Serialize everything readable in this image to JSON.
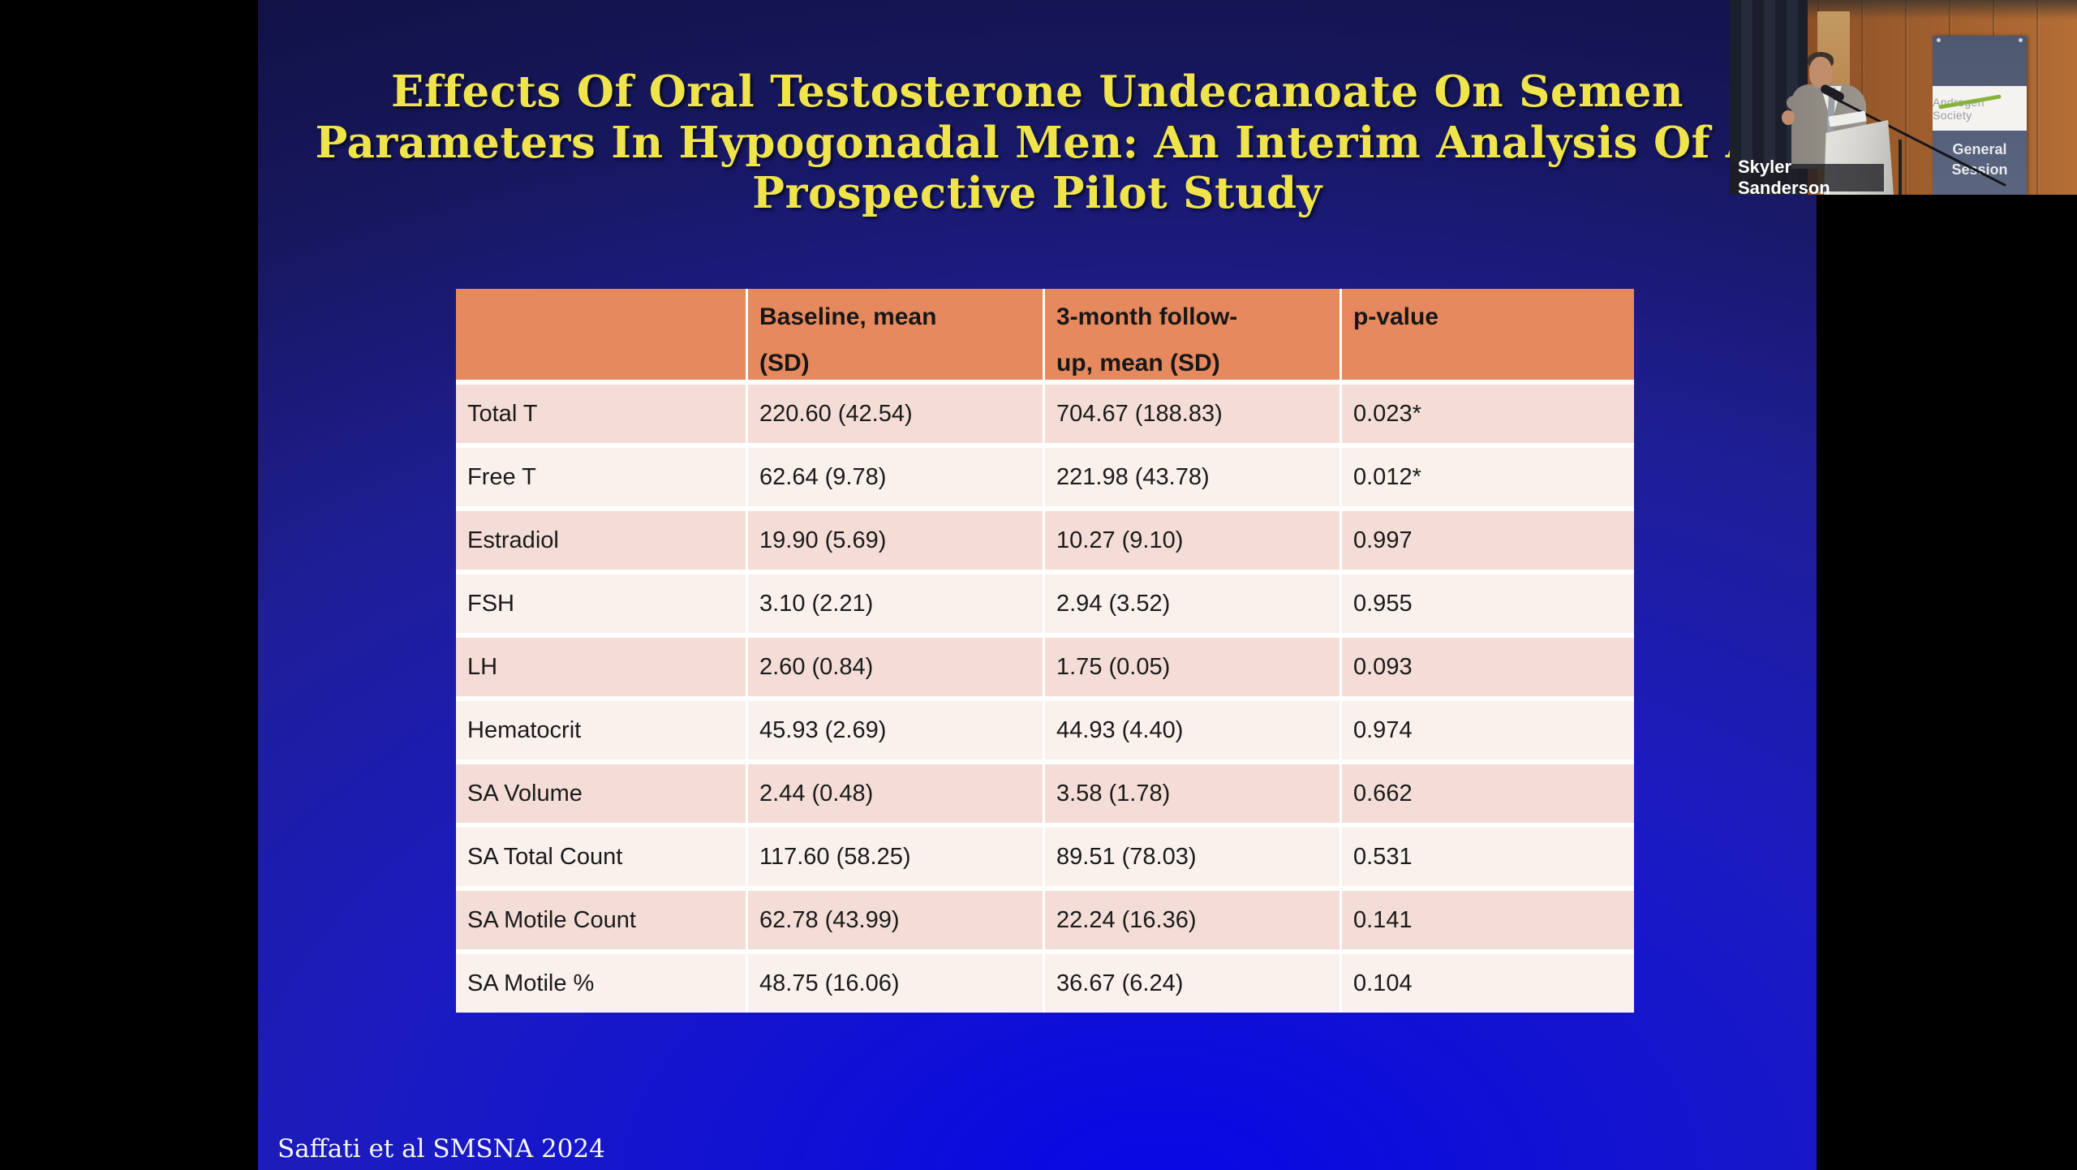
{
  "slide": {
    "title": "Effects Of Oral Testosterone Undecanoate On Semen\nParameters In Hypogonadal Men: An Interim Analysis Of A\nProspective Pilot Study",
    "citation": "Saffati et al SMSNA 2024",
    "colors": {
      "background_top": "#111143",
      "background_bottom": "#0707e6",
      "title_text": "#efe44c",
      "table_header_bg": "#e7895e",
      "row_odd_bg": "#f4ddd6",
      "row_even_bg": "#faf1ed"
    }
  },
  "table": {
    "headers": [
      "",
      "Baseline, mean\n(SD)",
      "3-month follow-\nup, mean (SD)",
      "p-value"
    ],
    "rows": [
      {
        "label": "Total T",
        "baseline": "220.60 (42.54)",
        "followup": "704.67 (188.83)",
        "p": "0.023*"
      },
      {
        "label": "Free T",
        "baseline": "62.64 (9.78)",
        "followup": "221.98 (43.78)",
        "p": "0.012*"
      },
      {
        "label": "Estradiol",
        "baseline": "19.90 (5.69)",
        "followup": "10.27 (9.10)",
        "p": "0.997"
      },
      {
        "label": "FSH",
        "baseline": "3.10 (2.21)",
        "followup": "2.94 (3.52)",
        "p": "0.955"
      },
      {
        "label": "LH",
        "baseline": "2.60 (0.84)",
        "followup": "1.75 (0.05)",
        "p": "0.093"
      },
      {
        "label": "Hematocrit",
        "baseline": "45.93 (2.69)",
        "followup": "44.93 (4.40)",
        "p": "0.974"
      },
      {
        "label": "SA Volume",
        "baseline": "2.44 (0.48)",
        "followup": "3.58 (1.78)",
        "p": "0.662"
      },
      {
        "label": "SA Total Count",
        "baseline": "117.60 (58.25)",
        "followup": "89.51 (78.03)",
        "p": "0.531"
      },
      {
        "label": "SA Motile Count",
        "baseline": "62.78 (43.99)",
        "followup": "22.24 (16.36)",
        "p": "0.141"
      },
      {
        "label": "SA Motile %",
        "baseline": "48.75 (16.06)",
        "followup": "36.67 (6.24)",
        "p": "0.104"
      }
    ]
  },
  "video": {
    "speaker_name": "Skyler Sanderson",
    "banner": {
      "logo_text": "Androgen Society",
      "session_label": "General\nSession",
      "banner_bg": "#57617a",
      "swoosh_green": "#86b23c"
    }
  }
}
